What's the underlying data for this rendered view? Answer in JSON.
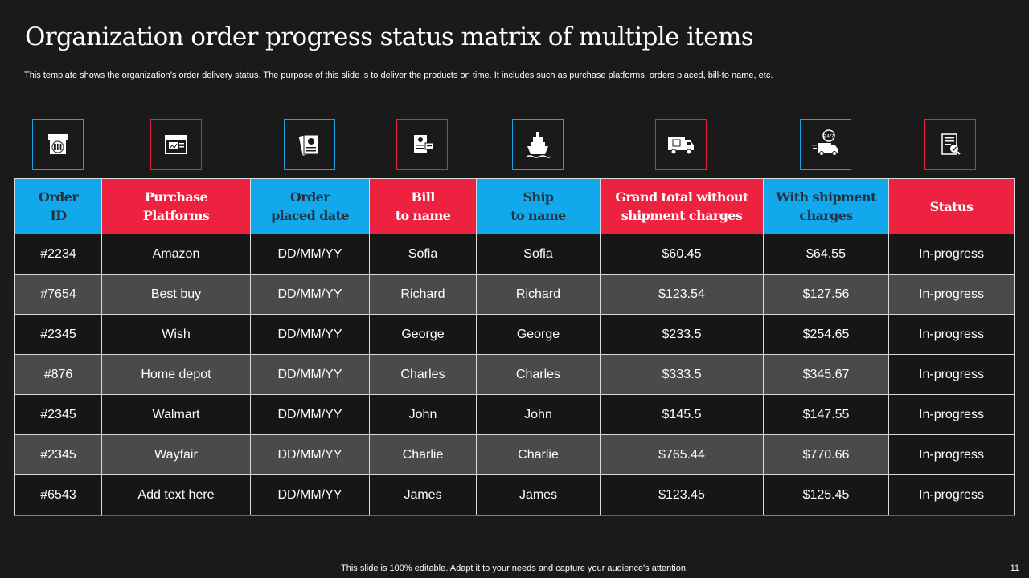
{
  "slide": {
    "title": "Organization order progress status matrix of multiple items",
    "subtitle": "This template shows the organization’s order delivery status. The purpose of this slide is to deliver the products on time. It includes such as purchase platforms, orders placed, bill-to name, etc.",
    "footer": "This slide is 100% editable. Adapt it to your needs and capture your audience's attention.",
    "page_number": "11"
  },
  "colors": {
    "blue": "#12a9ec",
    "red": "#ec2240",
    "background": "#1a1a1a",
    "row_gray": "#4a4a4a"
  },
  "icons": [
    {
      "name": "barcode-box-icon",
      "color": "blue"
    },
    {
      "name": "browser-window-icon",
      "color": "red"
    },
    {
      "name": "order-documents-icon",
      "color": "blue"
    },
    {
      "name": "bill-card-icon",
      "color": "red"
    },
    {
      "name": "cargo-ship-icon",
      "color": "blue"
    },
    {
      "name": "delivery-truck-icon",
      "color": "red"
    },
    {
      "name": "truck-24-7-icon",
      "color": "blue"
    },
    {
      "name": "status-check-document-icon",
      "color": "red"
    }
  ],
  "table": {
    "headers": [
      {
        "line1": "Order",
        "line2": "ID"
      },
      {
        "line1": "Purchase",
        "line2": "Platforms"
      },
      {
        "line1": "Order",
        "line2": "placed date"
      },
      {
        "line1": "Bill",
        "line2": "to name"
      },
      {
        "line1": "Ship",
        "line2": "to name"
      },
      {
        "line1": "Grand total without",
        "line2": "shipment charges"
      },
      {
        "line1": "With shipment",
        "line2": "charges"
      },
      {
        "line1": "Status",
        "line2": ""
      }
    ],
    "rows": [
      [
        "#2234",
        "Amazon",
        "DD/MM/YY",
        "Sofia",
        "Sofia",
        "$60.45",
        "$64.55",
        "In-progress"
      ],
      [
        "#7654",
        "Best buy",
        "DD/MM/YY",
        "Richard",
        "Richard",
        "$123.54",
        "$127.56",
        "In-progress"
      ],
      [
        "#2345",
        "Wish",
        "DD/MM/YY",
        "George",
        "George",
        "$233.5",
        "$254.65",
        "In-progress"
      ],
      [
        "#876",
        "Home depot",
        "DD/MM/YY",
        "Charles",
        "Charles",
        "$333.5",
        "$345.67",
        "In-progress"
      ],
      [
        "#2345",
        "Walmart",
        "DD/MM/YY",
        "John",
        "John",
        "$145.5",
        "$147.55",
        "In-progress"
      ],
      [
        "#2345",
        "Wayfair",
        "DD/MM/YY",
        "Charlie",
        "Charlie",
        "$765.44",
        "$770.66",
        "In-progress"
      ],
      [
        "#6543",
        "Add text here",
        "DD/MM/YY",
        "James",
        "James",
        "$123.45",
        "$125.45",
        "In-progress"
      ]
    ]
  }
}
